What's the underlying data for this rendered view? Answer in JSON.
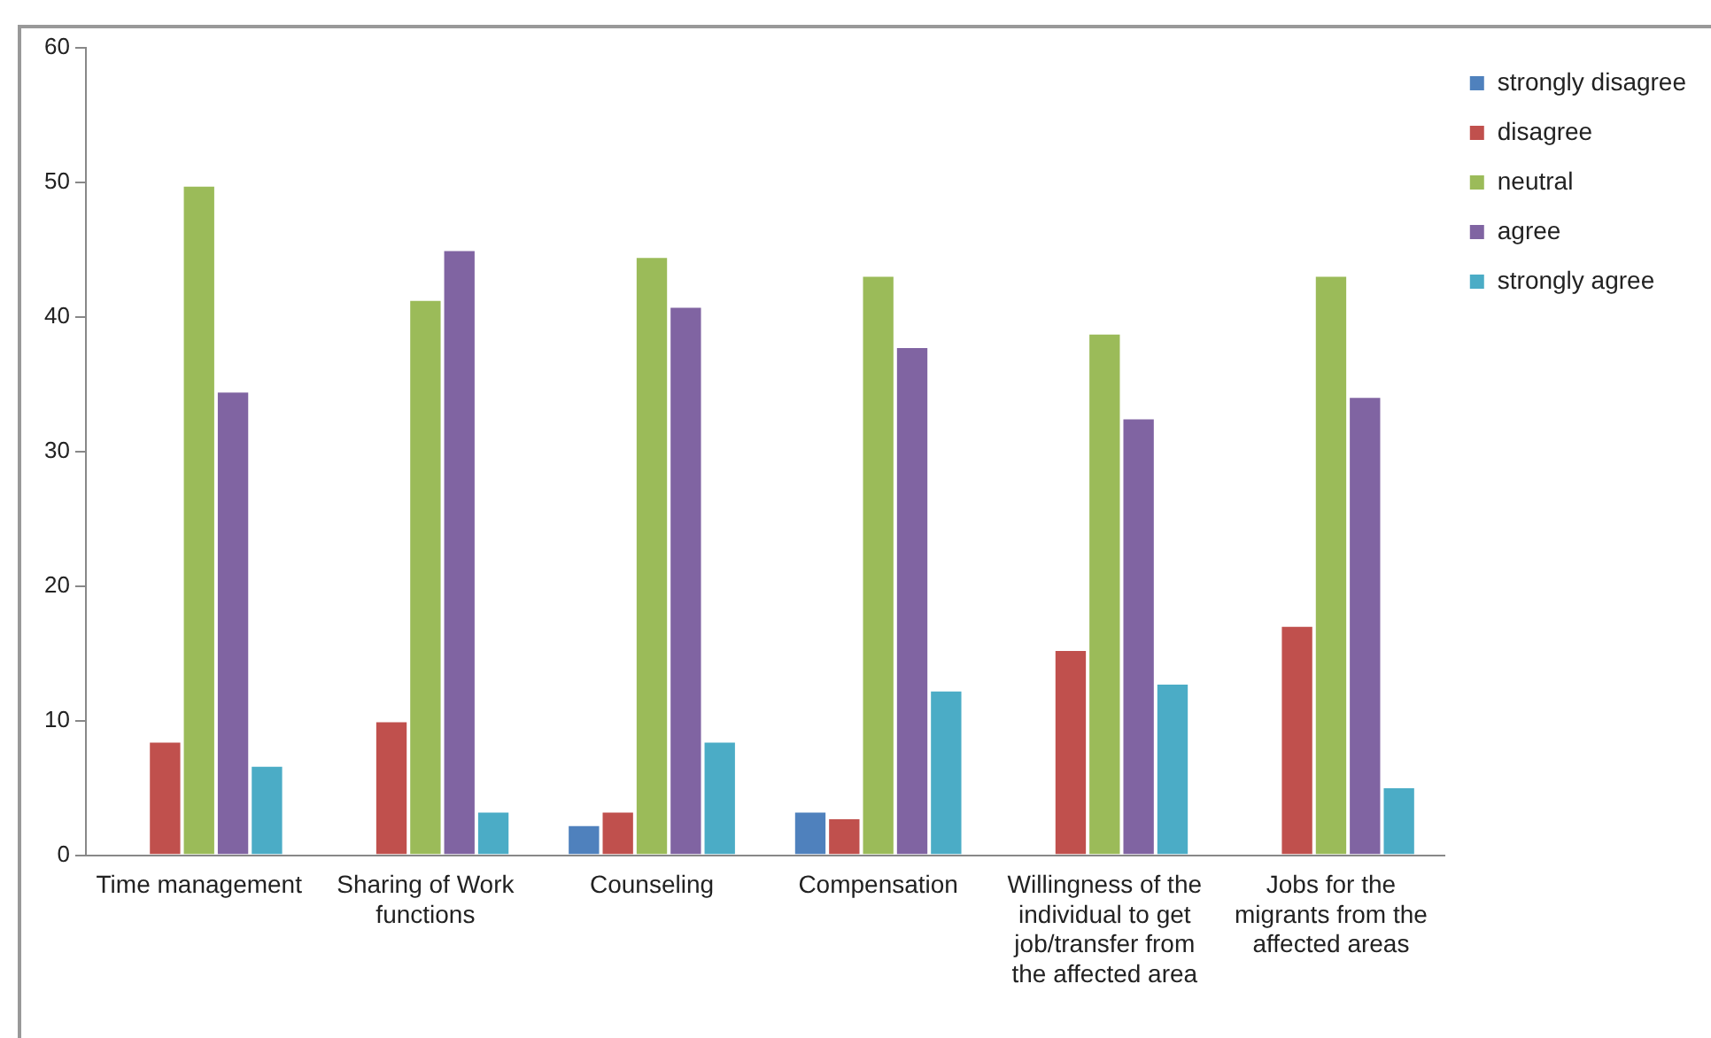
{
  "chart_data": {
    "type": "bar",
    "categories": [
      "Time management",
      "Sharing of Work functions",
      "Counseling",
      "Compensation",
      "Willingness of the individual to get job/transfer from the affected area",
      "Jobs for the migrants from the affected areas"
    ],
    "series": [
      {
        "name": "strongly disagree",
        "color": "#4f81bd",
        "values": [
          0,
          0,
          2.3,
          3.3,
          0,
          0
        ]
      },
      {
        "name": "disagree",
        "color": "#c0504d",
        "values": [
          8.5,
          10,
          3.3,
          2.8,
          15.3,
          17.1
        ]
      },
      {
        "name": "neutral",
        "color": "#9bbb59",
        "values": [
          49.8,
          41.3,
          44.5,
          43.1,
          38.8,
          43.1
        ]
      },
      {
        "name": "agree",
        "color": "#8064a2",
        "values": [
          34.5,
          45,
          40.8,
          37.8,
          32.5,
          34.1
        ]
      },
      {
        "name": "strongly agree",
        "color": "#4bacc6",
        "values": [
          6.7,
          3.3,
          8.5,
          12.3,
          12.8,
          5.1
        ]
      }
    ],
    "ylim": [
      0,
      60
    ],
    "yticks": [
      0,
      10,
      20,
      30,
      40,
      50,
      60
    ],
    "grid": false,
    "legend": "top right"
  }
}
